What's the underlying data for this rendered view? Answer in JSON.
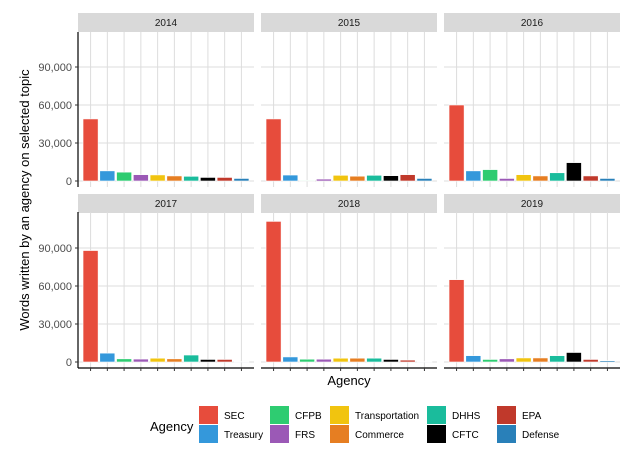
{
  "chart_data": {
    "type": "bar",
    "facet_by": "year",
    "facet_layout": "2 rows x 3 columns",
    "xlabel": "Agency",
    "ylabel": "Words written by an agency on selected topic",
    "ylim": [
      0,
      115000
    ],
    "yticks": [
      0,
      30000,
      60000,
      90000
    ],
    "ytick_labels": [
      "0",
      "30,000",
      "60,000",
      "90,000"
    ],
    "grid": true,
    "x_tick_labels_shown": false,
    "categories": [
      "SEC",
      "Treasury",
      "CFPB",
      "FRS",
      "Transportation",
      "Commerce",
      "DHHS",
      "CFTC",
      "EPA",
      "Defense"
    ],
    "colors": {
      "SEC": "#e74c3c",
      "Treasury": "#3498db",
      "CFPB": "#2ecc71",
      "FRS": "#9b59b6",
      "Transportation": "#f1c40f",
      "Commerce": "#e67e22",
      "DHHS": "#1abc9c",
      "CFTC": "#000000",
      "EPA": "#c0392b",
      "Defense": "#2980b9"
    },
    "legend": {
      "title": "Agency",
      "placement": "bottom",
      "entries": [
        "SEC",
        "Treasury",
        "CFPB",
        "FRS",
        "Transportation",
        "Commerce",
        "DHHS",
        "CFTC",
        "EPA",
        "Defense"
      ]
    },
    "panels": [
      {
        "label": "2014",
        "values": [
          49000,
          8000,
          7000,
          5000,
          4800,
          4000,
          3700,
          2800,
          2800,
          2000
        ]
      },
      {
        "label": "2015",
        "values": [
          49000,
          4700,
          500,
          1500,
          4500,
          3800,
          4500,
          4200,
          5000,
          2000
        ]
      },
      {
        "label": "2016",
        "values": [
          60000,
          8000,
          9000,
          2000,
          5000,
          4000,
          6500,
          14500,
          4000,
          2000
        ]
      },
      {
        "label": "2017",
        "values": [
          88000,
          7000,
          2500,
          2300,
          3000,
          2500,
          5500,
          2000,
          2000,
          300
        ]
      },
      {
        "label": "2018",
        "values": [
          111000,
          4000,
          2200,
          2200,
          3000,
          3000,
          3000,
          2000,
          1500,
          300
        ]
      },
      {
        "label": "2019",
        "values": [
          65000,
          5000,
          2000,
          2500,
          3200,
          3200,
          5000,
          7500,
          2000,
          1000
        ]
      }
    ]
  }
}
